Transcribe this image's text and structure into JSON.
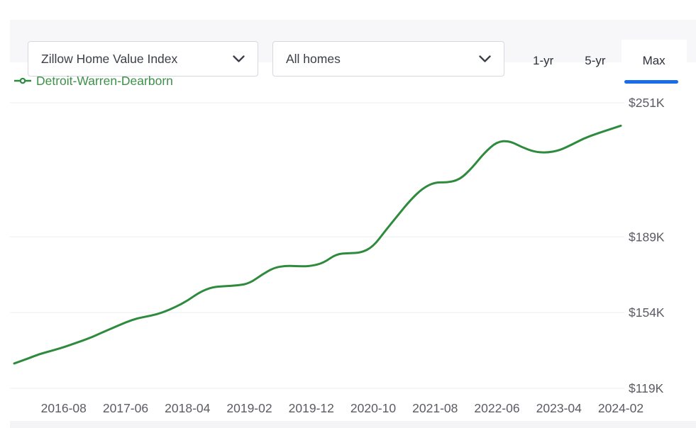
{
  "header": {
    "metric_dropdown": {
      "value": "Zillow Home Value Index"
    },
    "segment_dropdown": {
      "value": "All homes"
    },
    "range_tabs": [
      {
        "label": "1-yr",
        "selected": false
      },
      {
        "label": "5-yr",
        "selected": false
      },
      {
        "label": "Max",
        "selected": true
      }
    ]
  },
  "legend": {
    "label": "Detroit-Warren-Dearborn"
  },
  "colors": {
    "line_green": "#2e8b3d",
    "legend_green": "#3c9149",
    "tab_underline_blue": "#1a6ce8",
    "axis_label_gray": "#5b5b64",
    "gridline_gray": "#ededf1",
    "header_strip_gray": "#f7f7f9"
  },
  "chart_data": {
    "type": "line",
    "title": "",
    "xlabel": "",
    "ylabel": "",
    "legend_position": "top-left",
    "grid": "horizontal-only",
    "x_start": "2015-12",
    "x_end": "2024-02",
    "x_tick_labels": [
      "2016-08",
      "2017-06",
      "2018-04",
      "2019-02",
      "2019-12",
      "2020-10",
      "2021-08",
      "2022-06",
      "2023-04",
      "2024-02"
    ],
    "x_tick_months_from_start": [
      8,
      18,
      28,
      38,
      48,
      58,
      68,
      78,
      88,
      98
    ],
    "y_tick_labels": [
      "$251K",
      "$189K",
      "$154K",
      "$119K"
    ],
    "y_tick_values_k_usd": [
      251,
      189,
      154,
      119
    ],
    "ylim_k_usd": [
      119,
      251
    ],
    "series": [
      {
        "name": "Detroit-Warren-Dearborn",
        "color": "#2e8b3d",
        "x_months_from_start": [
          0,
          2,
          4,
          6,
          8,
          10,
          12,
          14,
          16,
          18,
          20,
          22,
          24,
          26,
          28,
          30,
          32,
          34,
          36,
          38,
          40,
          42,
          44,
          46,
          48,
          50,
          52,
          54,
          56,
          58,
          60,
          62,
          64,
          66,
          68,
          70,
          72,
          74,
          76,
          78,
          80,
          82,
          84,
          86,
          88,
          90,
          92,
          94,
          96,
          98
        ],
        "values_k_usd": [
          130.5,
          132.5,
          134.8,
          136.3,
          138.0,
          140.0,
          142.0,
          144.5,
          147.0,
          149.5,
          151.5,
          152.5,
          154.0,
          156.5,
          159.5,
          163.5,
          165.8,
          166.2,
          166.5,
          167.5,
          171.5,
          174.8,
          175.7,
          175.4,
          175.5,
          177.0,
          181.0,
          181.5,
          181.6,
          184.5,
          192.0,
          199.0,
          206.0,
          211.5,
          214.3,
          214.1,
          215.5,
          221.0,
          228.0,
          233.0,
          233.4,
          230.5,
          228.3,
          227.9,
          228.9,
          231.5,
          234.5,
          236.6,
          238.5,
          240.4
        ]
      }
    ]
  }
}
